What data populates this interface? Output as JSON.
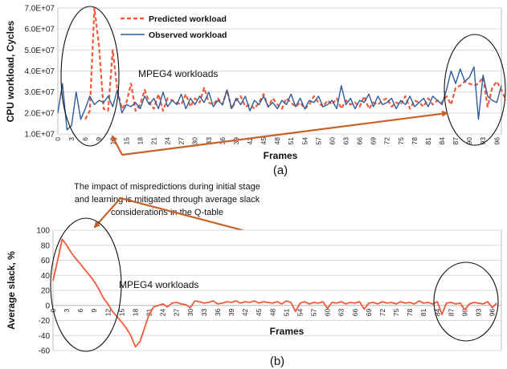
{
  "chart_data": [
    {
      "id": "a",
      "type": "line",
      "panel_label": "(a)",
      "ylabel": "CPU workload, Cycles",
      "xlabel": "Frames",
      "annotation": "MPEG4 workloads",
      "ylim": [
        10000000,
        70000000
      ],
      "yticks": [
        "1.0E+07",
        "2.0E+07",
        "3.0E+07",
        "4.0E+07",
        "5.0E+07",
        "6.0E+07",
        "7.0E+07"
      ],
      "yticks_values": [
        10000000,
        20000000,
        30000000,
        40000000,
        50000000,
        60000000,
        70000000
      ],
      "xlim": [
        0,
        97
      ],
      "grid": true,
      "legend_position": "top-center",
      "colors": {
        "predicted": "#f05a3c",
        "observed": "#2e5d9b"
      },
      "series": [
        {
          "name": "Predicted workload",
          "style": "dashed",
          "values": [
            null,
            null,
            null,
            null,
            null,
            null,
            17,
            21,
            70,
            52,
            22,
            21,
            50,
            31,
            22,
            25,
            34,
            21,
            24,
            31,
            25,
            22,
            29,
            21,
            27,
            26,
            25,
            24,
            29,
            23,
            27,
            25,
            32,
            25,
            24,
            27,
            24,
            31,
            22,
            26,
            28,
            23,
            24,
            22,
            25,
            29,
            23,
            27,
            24,
            22,
            27,
            25,
            23,
            25,
            22,
            24,
            28,
            25,
            23,
            26,
            24,
            27,
            22,
            26,
            24,
            25,
            23,
            28,
            22,
            25,
            24,
            26,
            27,
            23,
            25,
            24,
            28,
            22,
            26,
            25,
            23,
            27,
            24,
            26,
            25,
            28,
            24,
            32,
            33,
            35,
            34,
            33,
            34,
            37,
            23,
            32,
            35,
            31,
            26
          ]
        },
        {
          "name": "Observed workload",
          "style": "solid",
          "values": [
            20,
            34,
            12,
            14,
            30,
            17,
            22,
            28,
            24,
            26,
            25,
            28,
            23,
            31,
            20,
            24,
            23,
            25,
            22,
            28,
            24,
            27,
            22,
            30,
            23,
            26,
            24,
            29,
            22,
            27,
            24,
            28,
            25,
            30,
            23,
            26,
            24,
            31,
            22,
            27,
            24,
            28,
            21,
            26,
            24,
            28,
            23,
            25,
            22,
            26,
            24,
            29,
            23,
            27,
            22,
            26,
            25,
            28,
            23,
            24,
            26,
            22,
            33,
            24,
            27,
            22,
            26,
            25,
            29,
            23,
            28,
            24,
            25,
            27,
            22,
            26,
            24,
            28,
            23,
            25,
            27,
            23,
            28,
            26,
            24,
            31,
            40,
            34,
            41,
            35,
            37,
            42,
            17,
            38,
            28,
            26,
            25,
            33
          ]
        }
      ],
      "x_scale": 1,
      "y_scale": 1000000
    },
    {
      "id": "b",
      "type": "line",
      "panel_label": "(b)",
      "ylabel": "Average slack, %",
      "xlabel": "Frames",
      "annotation": "MPEG4 workloads",
      "ylim": [
        -60,
        100
      ],
      "yticks": [
        "-60",
        "-40",
        "-20",
        "0",
        "20",
        "40",
        "60",
        "80",
        "100"
      ],
      "yticks_values": [
        -60,
        -40,
        -20,
        0,
        20,
        40,
        60,
        80,
        100
      ],
      "xlim": [
        0,
        98
      ],
      "grid": true,
      "colors": {
        "slack": "#f05a3c"
      },
      "series": [
        {
          "values": [
            33,
            60,
            88,
            80,
            70,
            62,
            55,
            47,
            40,
            32,
            22,
            10,
            2,
            -8,
            -15,
            -22,
            -30,
            -40,
            -55,
            -48,
            -30,
            -12,
            -2,
            0,
            2,
            -2,
            3,
            4,
            2,
            1,
            -3,
            6,
            5,
            3,
            4,
            6,
            2,
            3,
            5,
            4,
            6,
            3,
            5,
            4,
            6,
            3,
            5,
            4,
            3,
            5,
            2,
            6,
            4,
            -8,
            3,
            5,
            2,
            4,
            3,
            5,
            -4,
            4,
            3,
            5,
            2,
            4,
            3,
            5,
            -5,
            3,
            4,
            2,
            5,
            3,
            4,
            2,
            5,
            3,
            4,
            2,
            6,
            3,
            4,
            2,
            5,
            -12,
            3,
            4,
            2,
            3,
            -6,
            2,
            4,
            3,
            2,
            5,
            -3,
            3
          ]
        }
      ]
    }
  ],
  "annotation_text": {
    "line1": "The impact of mispredictions during initial stage",
    "line2": "and learning is mitigated through average slack",
    "line3": "considerations in the Q-table"
  },
  "colors": {
    "arrow": "#c8602a",
    "grid": "#d9d9d9"
  }
}
